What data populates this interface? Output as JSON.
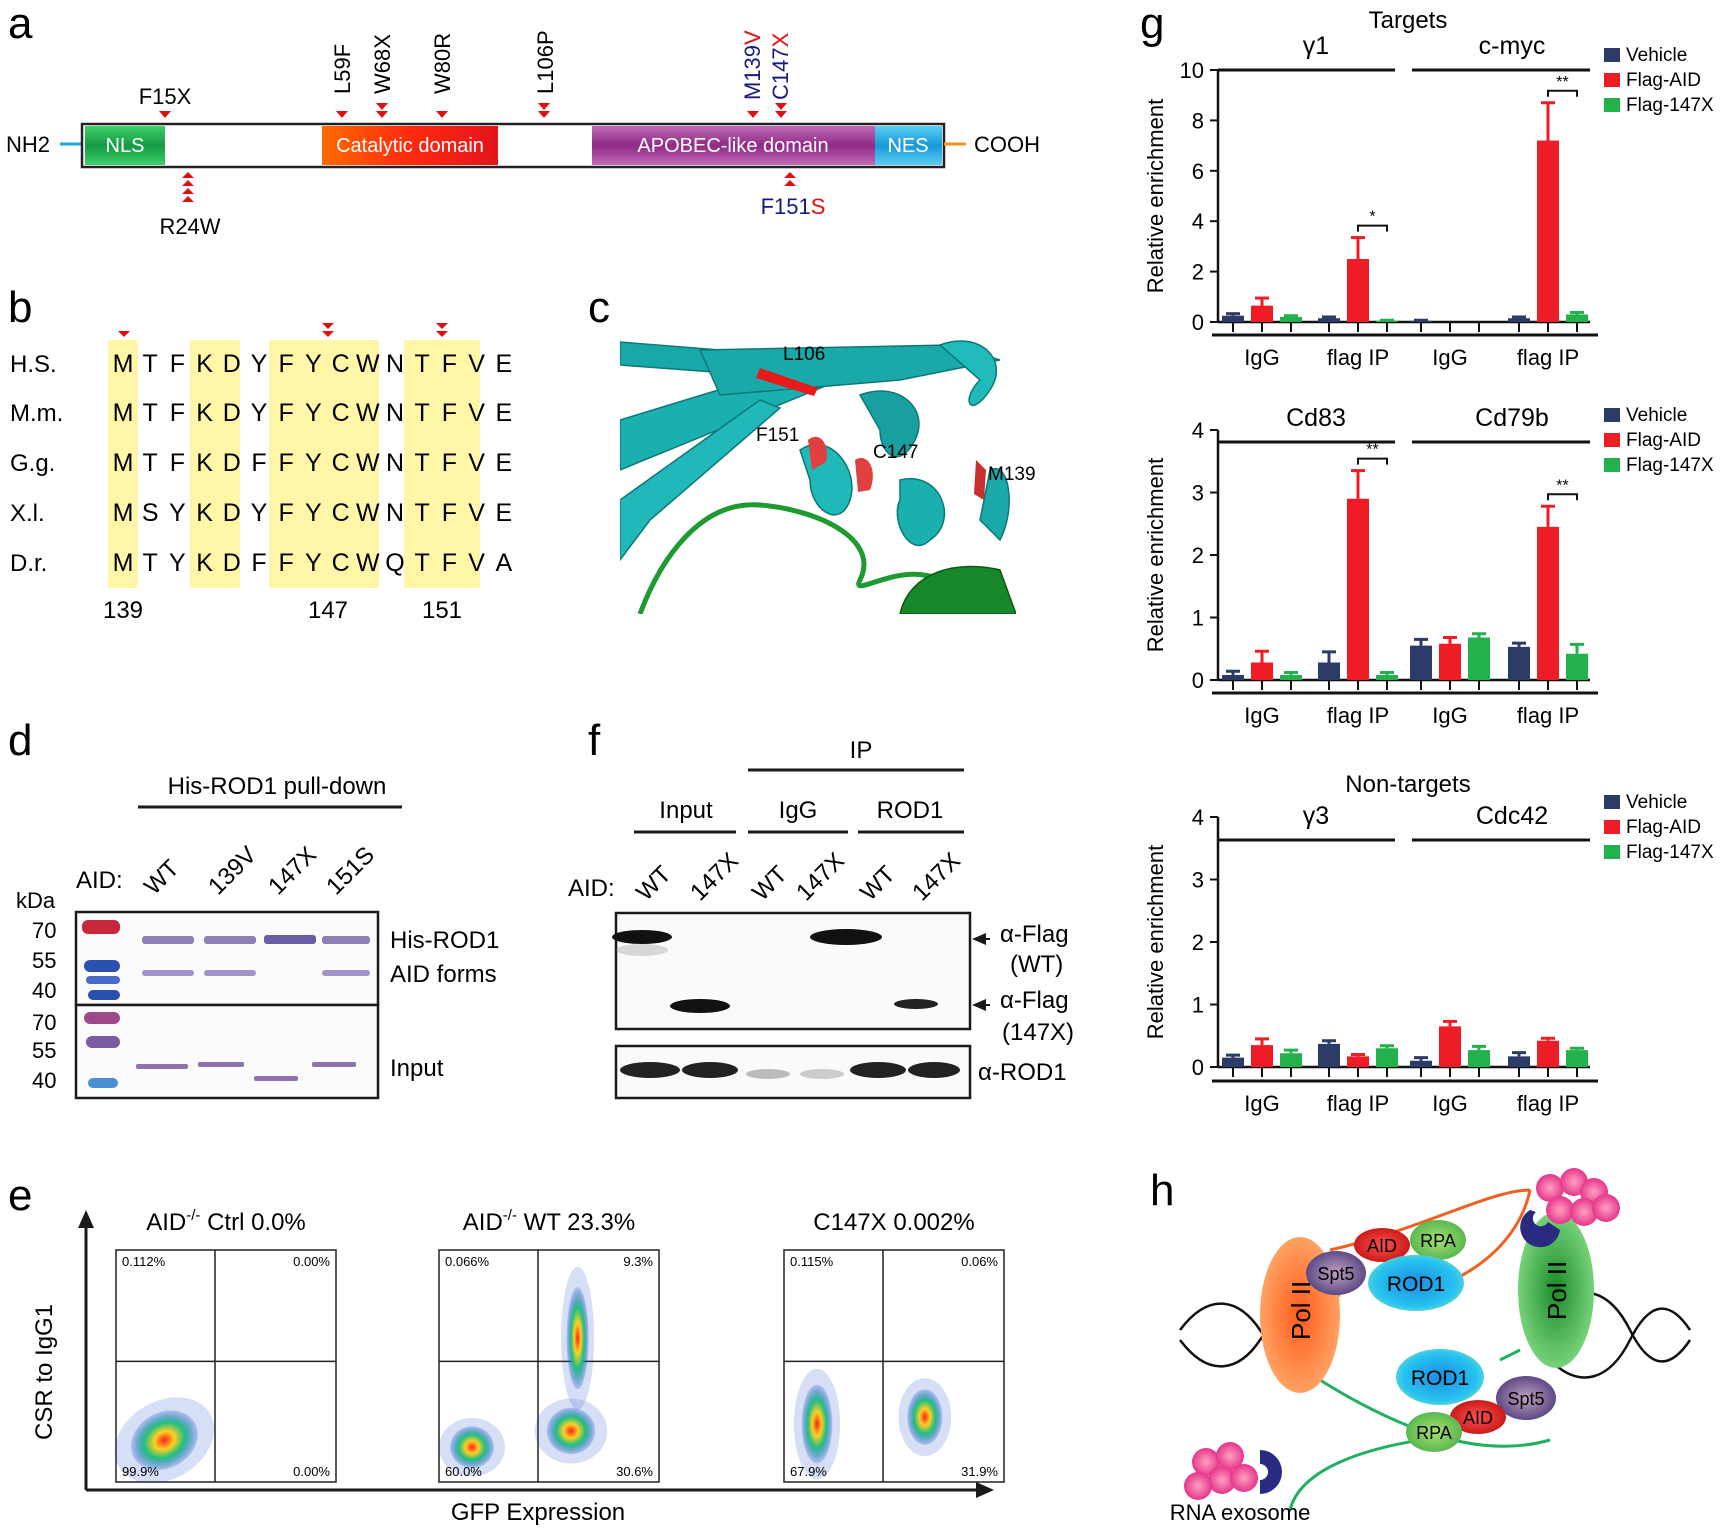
{
  "panels": {
    "a": "a",
    "b": "b",
    "c": "c",
    "d": "d",
    "e": "e",
    "f": "f",
    "g": "g",
    "h": "h"
  },
  "panel_a": {
    "nh2": "NH2",
    "cooh": "COOH",
    "domains": [
      {
        "label": "NLS",
        "color": "#1fa84f"
      },
      {
        "label": "Catalytic domain",
        "color": "#f03a1a"
      },
      {
        "label": "APOBEC-like domain",
        "color": "#9a2e8a"
      },
      {
        "label": "NES",
        "color": "#1ea5e0"
      }
    ],
    "mutations_top": [
      "F15X",
      "L59F",
      "W68X",
      "W80R",
      "L106P"
    ],
    "m139v": {
      "pre": "M139",
      "post": "V"
    },
    "c147x": {
      "pre": "C147",
      "post": "X"
    },
    "r24w": "R24W",
    "f151s": {
      "pre": "F151",
      "post": "S"
    }
  },
  "panel_b": {
    "species": [
      "H.S.",
      "M.m.",
      "G.g.",
      "X.l.",
      "D.r."
    ],
    "sequences": [
      [
        "M",
        "T",
        "F",
        "K",
        "D",
        "Y",
        "F",
        "Y",
        "C",
        "W",
        "N",
        "T",
        "F",
        "V",
        "E"
      ],
      [
        "M",
        "T",
        "F",
        "K",
        "D",
        "Y",
        "F",
        "Y",
        "C",
        "W",
        "N",
        "T",
        "F",
        "V",
        "E"
      ],
      [
        "M",
        "T",
        "F",
        "K",
        "D",
        "F",
        "F",
        "Y",
        "C",
        "W",
        "N",
        "T",
        "F",
        "V",
        "E"
      ],
      [
        "M",
        "S",
        "Y",
        "K",
        "D",
        "Y",
        "F",
        "Y",
        "C",
        "W",
        "N",
        "T",
        "F",
        "V",
        "E"
      ],
      [
        "M",
        "T",
        "Y",
        "K",
        "D",
        "F",
        "F",
        "Y",
        "C",
        "W",
        "Q",
        "T",
        "F",
        "V",
        "A"
      ]
    ],
    "positions": [
      "139",
      "147",
      "151"
    ]
  },
  "panel_c": {
    "labels": [
      "L106",
      "F151",
      "C147",
      "M139"
    ]
  },
  "panel_d": {
    "title": "His-ROD1 pull-down",
    "aid_label": "AID:",
    "lanes": [
      "WT",
      "139V",
      "147X",
      "151S"
    ],
    "kda": "kDa",
    "markers_top": [
      "70",
      "55",
      "40"
    ],
    "markers_bottom": [
      "70",
      "55",
      "40"
    ],
    "band_labels": [
      "His-ROD1",
      "AID forms",
      "Input"
    ]
  },
  "panel_e": {
    "ylabel": "CSR to IgG1",
    "xlabel": "GFP Expression",
    "plots": [
      {
        "title_pre": "AID",
        "title_sup": "-/-",
        "title_post": " Ctrl 0.0%",
        "q": [
          "0.112%",
          "0.00%",
          "99.9%",
          "0.00%"
        ]
      },
      {
        "title_pre": "AID",
        "title_sup": "-/-",
        "title_post": " WT 23.3%",
        "q": [
          "0.066%",
          "9.3%",
          "60.0%",
          "30.6%"
        ]
      },
      {
        "title_pre": "",
        "title_sup": "",
        "title_post": "C147X 0.002%",
        "q": [
          "0.115%",
          "0.06%",
          "67.9%",
          "31.9%"
        ]
      }
    ]
  },
  "panel_f": {
    "ip": "IP",
    "groups": [
      "Input",
      "IgG",
      "ROD1"
    ],
    "aid_label": "AID:",
    "lanes": [
      "WT",
      "147X",
      "WT",
      "147X",
      "WT",
      "147X"
    ],
    "labels": [
      "α-Flag",
      "(WT)",
      "α-Flag",
      "(147X)",
      "α-ROD1"
    ]
  },
  "panel_h": {
    "labels": [
      "Pol II",
      "Pol II",
      "Spt5",
      "AID",
      "RPA",
      "ROD1",
      "ROD1",
      "Spt5",
      "AID",
      "RPA"
    ],
    "rna_exosome": "RNA exosome"
  },
  "chart_data": [
    {
      "type": "bar",
      "title": "Targets",
      "groups": [
        "γ1",
        "c-myc"
      ],
      "categories": [
        "IgG",
        "flag IP",
        "IgG",
        "flag IP"
      ],
      "ylabel": "Relative enrichment",
      "ylim": [
        0,
        10
      ],
      "yticks": [
        "0",
        "2",
        "4",
        "6",
        "8",
        "10"
      ],
      "series": [
        {
          "name": "Vehicle",
          "color": "#2b3a67",
          "values": [
            0.25,
            0.15,
            0.05,
            0.15
          ],
          "err": [
            0.08,
            0.05,
            0.02,
            0.05
          ]
        },
        {
          "name": "Flag-AID",
          "color": "#ee1c24",
          "values": [
            0.65,
            2.5,
            0,
            7.2
          ],
          "err": [
            0.3,
            0.85,
            0,
            1.5
          ]
        },
        {
          "name": "Flag-147X",
          "color": "#22b14c",
          "values": [
            0.2,
            0.05,
            0,
            0.3
          ],
          "err": [
            0.05,
            0.02,
            0,
            0.08
          ]
        }
      ],
      "sig": [
        "*",
        "**"
      ]
    },
    {
      "type": "bar",
      "title": "",
      "groups": [
        "Cd83",
        "Cd79b"
      ],
      "categories": [
        "IgG",
        "flag IP",
        "IgG",
        "flag IP"
      ],
      "ylabel": "Relative enrichment",
      "ylim": [
        0,
        4
      ],
      "yticks": [
        "0",
        "1",
        "2",
        "3",
        "4"
      ],
      "series": [
        {
          "name": "Vehicle",
          "color": "#2b3a67",
          "values": [
            0.08,
            0.28,
            0.55,
            0.53
          ],
          "err": [
            0.06,
            0.17,
            0.1,
            0.06
          ]
        },
        {
          "name": "Flag-AID",
          "color": "#ee1c24",
          "values": [
            0.28,
            2.9,
            0.58,
            2.45
          ],
          "err": [
            0.18,
            0.45,
            0.1,
            0.33
          ]
        },
        {
          "name": "Flag-147X",
          "color": "#22b14c",
          "values": [
            0.08,
            0.08,
            0.68,
            0.42
          ],
          "err": [
            0.04,
            0.04,
            0.06,
            0.15
          ]
        }
      ],
      "sig": [
        "**",
        "**"
      ]
    },
    {
      "type": "bar",
      "title": "Non-targets",
      "groups": [
        "γ3",
        "Cdc42"
      ],
      "categories": [
        "IgG",
        "flag IP",
        "IgG",
        "flag IP"
      ],
      "ylabel": "Relative enrichment",
      "ylim": [
        0,
        4
      ],
      "yticks": [
        "0",
        "1",
        "2",
        "3",
        "4"
      ],
      "series": [
        {
          "name": "Vehicle",
          "color": "#2b3a67",
          "values": [
            0.15,
            0.37,
            0.1,
            0.17
          ],
          "err": [
            0.04,
            0.05,
            0.05,
            0.06
          ]
        },
        {
          "name": "Flag-AID",
          "color": "#ee1c24",
          "values": [
            0.35,
            0.17,
            0.65,
            0.42
          ],
          "err": [
            0.1,
            0.03,
            0.08,
            0.04
          ]
        },
        {
          "name": "Flag-147X",
          "color": "#22b14c",
          "values": [
            0.22,
            0.3,
            0.27,
            0.27
          ],
          "err": [
            0.05,
            0.04,
            0.06,
            0.03
          ]
        }
      ],
      "sig": []
    }
  ]
}
